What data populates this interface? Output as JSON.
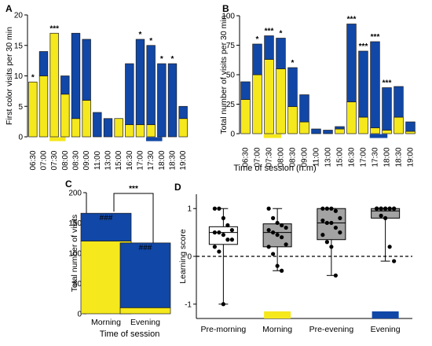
{
  "chart_data": [
    {
      "panel": "A",
      "type": "bar",
      "stacked": true,
      "ylabel": "First color visits per 30 min",
      "ylim": [
        0,
        20
      ],
      "yticks": [
        0,
        5,
        10,
        15,
        20
      ],
      "categories": [
        "06:30",
        "07:00",
        "07:30",
        "08:00",
        "08:30",
        "09:00",
        "11:00",
        "13:00",
        "15:00",
        "16:30",
        "17:00",
        "17:30",
        "18:00",
        "18:30",
        "19:00"
      ],
      "series": [
        {
          "color": "#f5e81c",
          "values": [
            9,
            10,
            17,
            7,
            3,
            6,
            0,
            0,
            3,
            2,
            2,
            2,
            0,
            0,
            3
          ]
        },
        {
          "color": "#1147a6",
          "values": [
            0,
            4,
            0,
            3,
            14,
            10,
            4,
            3,
            0,
            10,
            14,
            13,
            12,
            12,
            2
          ]
        }
      ],
      "significance": [
        "*",
        "",
        "***",
        "",
        "",
        "",
        "",
        "",
        "",
        "",
        "*",
        "*",
        "*",
        "*",
        ""
      ],
      "period_markers": [
        {
          "from": "07:30",
          "to": "08:00",
          "color": "#f5e81c"
        },
        {
          "from": "17:30",
          "to": "18:00",
          "color": "#1147a6"
        }
      ]
    },
    {
      "panel": "B",
      "type": "bar",
      "stacked": true,
      "ylabel": "Total number of visits per 30 min",
      "xlabel": "Time of session (h:m)",
      "ylim": [
        0,
        100
      ],
      "yticks": [
        0,
        25,
        50,
        75,
        100
      ],
      "categories": [
        "06:30",
        "07:00",
        "07:30",
        "08:00",
        "08:30",
        "09:00",
        "11:00",
        "13:00",
        "15:00",
        "16:30",
        "17:00",
        "17:30",
        "18:00",
        "18:30",
        "19:00"
      ],
      "series": [
        {
          "color": "#f5e81c",
          "values": [
            29,
            50,
            63,
            55,
            23,
            10,
            0,
            0,
            4,
            27,
            14,
            5,
            3,
            14,
            2
          ]
        },
        {
          "color": "#1147a6",
          "values": [
            15,
            26,
            20,
            26,
            33,
            23,
            4,
            3,
            2,
            66,
            56,
            73,
            36,
            26,
            8
          ]
        }
      ],
      "significance": [
        "",
        "*",
        "***",
        "*",
        "*",
        "",
        "",
        "",
        "",
        "***",
        "***",
        "***",
        "***",
        "",
        ""
      ],
      "period_markers": [
        {
          "from": "07:30",
          "to": "08:00",
          "color": "#f5e81c"
        },
        {
          "from": "17:30",
          "to": "18:00",
          "color": "#1147a6"
        }
      ]
    },
    {
      "panel": "C",
      "type": "bar",
      "stacked": true,
      "xlabel": "Time of session",
      "ylabel": "Total number of visits",
      "ylim": [
        0,
        200
      ],
      "yticks": [
        0,
        50,
        100,
        150,
        200
      ],
      "categories": [
        "Morning",
        "Evening"
      ],
      "series": [
        {
          "color": "#f5e81c",
          "values": [
            120,
            10
          ]
        },
        {
          "color": "#1147a6",
          "values": [
            46,
            107
          ]
        }
      ],
      "bar_labels": [
        "###",
        "###"
      ],
      "bracket_label": "***"
    },
    {
      "panel": "D",
      "type": "box",
      "ylabel": "Learning score",
      "ylim": [
        -1.3,
        1.3
      ],
      "yticks": [
        -1,
        0,
        1
      ],
      "reference_line": 0,
      "categories": [
        "Pre-morning",
        "Morning",
        "Pre-evening",
        "Evening"
      ],
      "boxes": [
        {
          "min": -1.0,
          "q1": 0.25,
          "median": 0.5,
          "q3": 0.62,
          "max": 1.0,
          "fill": "#ffffff",
          "points": [
            1.0,
            1.0,
            0.8,
            0.65,
            0.55,
            0.5,
            0.5,
            0.45,
            0.35,
            0.35,
            0.2,
            0.1,
            -1.0
          ]
        },
        {
          "min": -0.3,
          "q1": 0.2,
          "median": 0.5,
          "q3": 0.68,
          "max": 1.0,
          "fill": "#a3a3a3",
          "points": [
            1.0,
            0.8,
            0.7,
            0.65,
            0.6,
            0.55,
            0.5,
            0.45,
            0.4,
            0.25,
            0.2,
            0.05,
            -0.2,
            -0.3
          ]
        },
        {
          "min": -0.4,
          "q1": 0.35,
          "median": 0.7,
          "q3": 1.0,
          "max": 1.0,
          "fill": "#a3a3a3",
          "points": [
            1.0,
            1.0,
            1.0,
            0.95,
            0.8,
            0.75,
            0.7,
            0.7,
            0.6,
            0.5,
            0.45,
            0.3,
            0.2,
            -0.4
          ]
        },
        {
          "min": -0.1,
          "q1": 0.8,
          "median": 0.95,
          "q3": 1.0,
          "max": 1.0,
          "fill": "#a3a3a3",
          "points": [
            1.0,
            1.0,
            1.0,
            1.0,
            1.0,
            1.0,
            1.0,
            1.0,
            1.0,
            1.0,
            1.0,
            0.85,
            0.8,
            0.2,
            -0.1
          ]
        }
      ],
      "period_markers": [
        {
          "category": "Morning",
          "color": "#f5e81c"
        },
        {
          "category": "Evening",
          "color": "#1147a6"
        }
      ]
    }
  ]
}
